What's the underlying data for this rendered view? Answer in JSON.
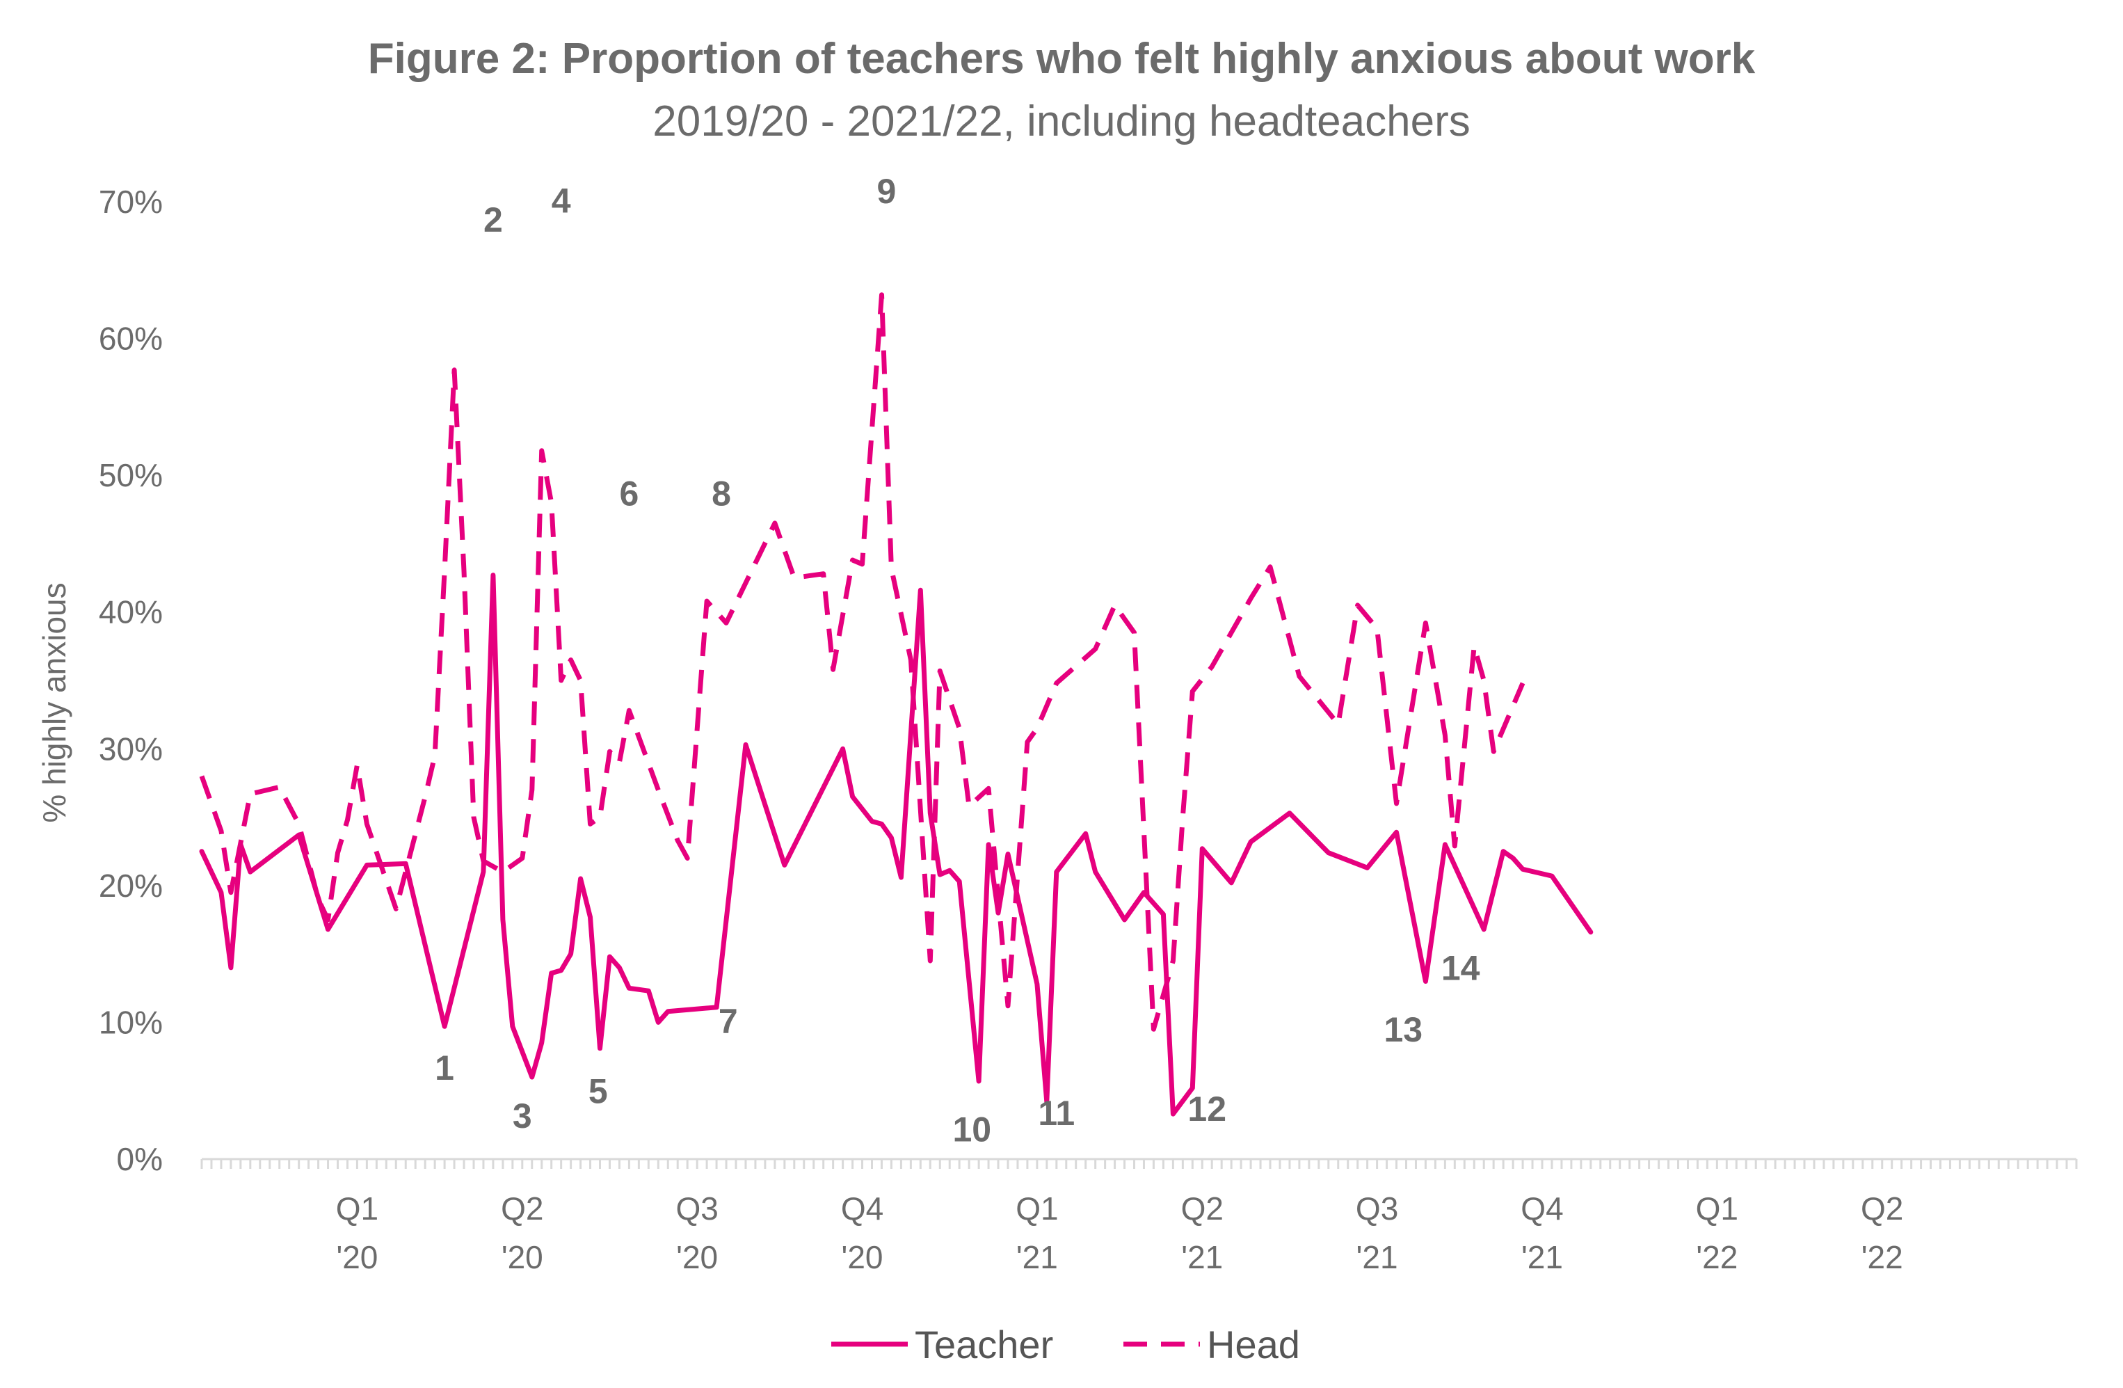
{
  "chart_data": {
    "type": "line",
    "title": "Figure 2: Proportion of teachers who felt highly anxious about work",
    "subtitle": "2019/20 - 2021/22, including headteachers",
    "xlabel": "",
    "ylabel": "% highly anxious",
    "ylim": [
      0,
      70
    ],
    "y_ticks": [
      "0%",
      "10%",
      "20%",
      "30%",
      "40%",
      "50%",
      "60%",
      "70%"
    ],
    "x_tick_labels": [
      {
        "line1": "Q1",
        "line2": "'20",
        "x": 16
      },
      {
        "line1": "Q2",
        "line2": "'20",
        "x": 33
      },
      {
        "line1": "Q3",
        "line2": "'20",
        "x": 51
      },
      {
        "line1": "Q4",
        "line2": "'20",
        "x": 68
      },
      {
        "line1": "Q1",
        "line2": "'21",
        "x": 86
      },
      {
        "line1": "Q2",
        "line2": "'21",
        "x": 103
      },
      {
        "line1": "Q3",
        "line2": "'21",
        "x": 121
      },
      {
        "line1": "Q4",
        "line2": "'21",
        "x": 138
      },
      {
        "line1": "Q1",
        "line2": "'22",
        "x": 156
      },
      {
        "line1": "Q2",
        "line2": "'22",
        "x": 173
      }
    ],
    "x_range": [
      0,
      193
    ],
    "grid": false,
    "legend_position": "bottom",
    "colors": {
      "series": "#e6007e",
      "text": "#6b6b6b",
      "axis": "#d9d9d9"
    },
    "series": [
      {
        "name": "Teacher",
        "style": "solid",
        "points": [
          [
            0,
            22.5
          ],
          [
            2,
            19.5
          ],
          [
            3,
            14
          ],
          [
            4,
            23
          ],
          [
            5,
            21
          ],
          [
            10,
            23.7
          ],
          [
            13,
            16.8
          ],
          [
            17,
            21.5
          ],
          [
            21,
            21.6
          ],
          [
            25,
            9.7
          ],
          [
            29,
            21
          ],
          [
            30,
            42.7
          ],
          [
            31,
            17.5
          ],
          [
            32,
            9.7
          ],
          [
            34,
            6
          ],
          [
            35,
            8.5
          ],
          [
            36,
            13.6
          ],
          [
            37,
            13.8
          ],
          [
            38,
            15
          ],
          [
            39,
            20.5
          ],
          [
            40,
            17.7
          ],
          [
            41,
            8.1
          ],
          [
            42,
            14.8
          ],
          [
            43,
            14
          ],
          [
            44,
            12.5
          ],
          [
            46,
            12.3
          ],
          [
            47,
            10
          ],
          [
            48,
            10.8
          ],
          [
            53,
            11.1
          ],
          [
            56,
            30.3
          ],
          [
            60,
            21.5
          ],
          [
            66,
            30
          ],
          [
            67,
            26.5
          ],
          [
            69,
            24.7
          ],
          [
            70,
            24.5
          ],
          [
            71,
            23.5
          ],
          [
            72,
            20.6
          ],
          [
            74,
            41.6
          ],
          [
            75,
            25.3
          ],
          [
            76,
            20.8
          ],
          [
            77,
            21.1
          ],
          [
            78,
            20.3
          ],
          [
            80,
            5.7
          ],
          [
            81,
            23
          ],
          [
            82,
            18
          ],
          [
            83,
            22.3
          ],
          [
            86,
            12.8
          ],
          [
            87,
            4.2
          ],
          [
            88,
            21
          ],
          [
            91,
            23.8
          ],
          [
            92,
            21
          ],
          [
            95,
            17.5
          ],
          [
            97,
            19.5
          ],
          [
            99,
            17.9
          ],
          [
            100,
            3.3
          ],
          [
            102,
            5.2
          ],
          [
            103,
            22.7
          ],
          [
            106,
            20.2
          ],
          [
            108,
            23.2
          ],
          [
            112,
            25.3
          ],
          [
            116,
            22.4
          ],
          [
            120,
            21.3
          ],
          [
            123,
            23.9
          ],
          [
            126,
            13
          ],
          [
            128,
            23
          ],
          [
            132,
            16.8
          ],
          [
            134,
            22.5
          ],
          [
            135,
            22
          ],
          [
            136,
            21.2
          ],
          [
            139,
            20.7
          ],
          [
            143,
            16.6
          ]
        ]
      },
      {
        "name": "Head",
        "style": "dashed",
        "points": [
          [
            0,
            28
          ],
          [
            2,
            24
          ],
          [
            3,
            19.5
          ],
          [
            5,
            26.7
          ],
          [
            8,
            27.2
          ],
          [
            10,
            24.5
          ],
          [
            12,
            19
          ],
          [
            13,
            17.5
          ],
          [
            14,
            22.4
          ],
          [
            15,
            24.8
          ],
          [
            16,
            28.8
          ],
          [
            17,
            24.5
          ],
          [
            20,
            18.3
          ],
          [
            23,
            26.5
          ],
          [
            24,
            29.5
          ],
          [
            25,
            43
          ],
          [
            26,
            57.7
          ],
          [
            27,
            43
          ],
          [
            28,
            25
          ],
          [
            29,
            21.8
          ],
          [
            31,
            21
          ],
          [
            33,
            22
          ],
          [
            34,
            27
          ],
          [
            35,
            51.8
          ],
          [
            36,
            48
          ],
          [
            37,
            35
          ],
          [
            38,
            36.5
          ],
          [
            39,
            35
          ],
          [
            40,
            24.5
          ],
          [
            41,
            25
          ],
          [
            42,
            29.8
          ],
          [
            43,
            29
          ],
          [
            44,
            32.8
          ],
          [
            47,
            27
          ],
          [
            49,
            23.3
          ],
          [
            50,
            22
          ],
          [
            52,
            40.8
          ],
          [
            54,
            39.2
          ],
          [
            59,
            46.5
          ],
          [
            61,
            42.5
          ],
          [
            64,
            42.8
          ],
          [
            65,
            35.8
          ],
          [
            67,
            43.8
          ],
          [
            68,
            43.5
          ],
          [
            70,
            63.2
          ],
          [
            71,
            43.2
          ],
          [
            73,
            36.5
          ],
          [
            75,
            14.5
          ],
          [
            76,
            35.7
          ],
          [
            78,
            31.5
          ],
          [
            79,
            25.8
          ],
          [
            81,
            27.1
          ],
          [
            83,
            11.2
          ],
          [
            85,
            30.5
          ],
          [
            86,
            31.5
          ],
          [
            88,
            34.8
          ],
          [
            92,
            37.3
          ],
          [
            94,
            40.5
          ],
          [
            96,
            38.5
          ],
          [
            98,
            9.5
          ],
          [
            100,
            14.5
          ],
          [
            101,
            25
          ],
          [
            102,
            34.2
          ],
          [
            104,
            36
          ],
          [
            106,
            38.5
          ],
          [
            108,
            41
          ],
          [
            110,
            43.3
          ],
          [
            113,
            35.3
          ],
          [
            117,
            31.8
          ],
          [
            119,
            40.5
          ],
          [
            121,
            38.8
          ],
          [
            123,
            26
          ],
          [
            126,
            39.2
          ],
          [
            128,
            31
          ],
          [
            129,
            22.9
          ],
          [
            131,
            37.5
          ],
          [
            132,
            35
          ],
          [
            133,
            29.8
          ],
          [
            136,
            34.8
          ]
        ]
      }
    ],
    "annotations": [
      {
        "text": "1",
        "x": 25,
        "y": 5.8
      },
      {
        "text": "2",
        "x": 30,
        "y": 67.8
      },
      {
        "text": "3",
        "x": 33,
        "y": 2.3
      },
      {
        "text": "4",
        "x": 37,
        "y": 69.2
      },
      {
        "text": "5",
        "x": 40.8,
        "y": 4.1
      },
      {
        "text": "6",
        "x": 44,
        "y": 47.8
      },
      {
        "text": "7",
        "x": 54.2,
        "y": 9.2
      },
      {
        "text": "8",
        "x": 53.5,
        "y": 47.8
      },
      {
        "text": "9",
        "x": 70.5,
        "y": 69.9
      },
      {
        "text": "10",
        "x": 79.3,
        "y": 1.3
      },
      {
        "text": "11",
        "x": 88,
        "y": 2.5
      },
      {
        "text": "12",
        "x": 103.5,
        "y": 2.8
      },
      {
        "text": "13",
        "x": 123.7,
        "y": 8.6
      },
      {
        "text": "14",
        "x": 129.6,
        "y": 13.1
      }
    ]
  }
}
